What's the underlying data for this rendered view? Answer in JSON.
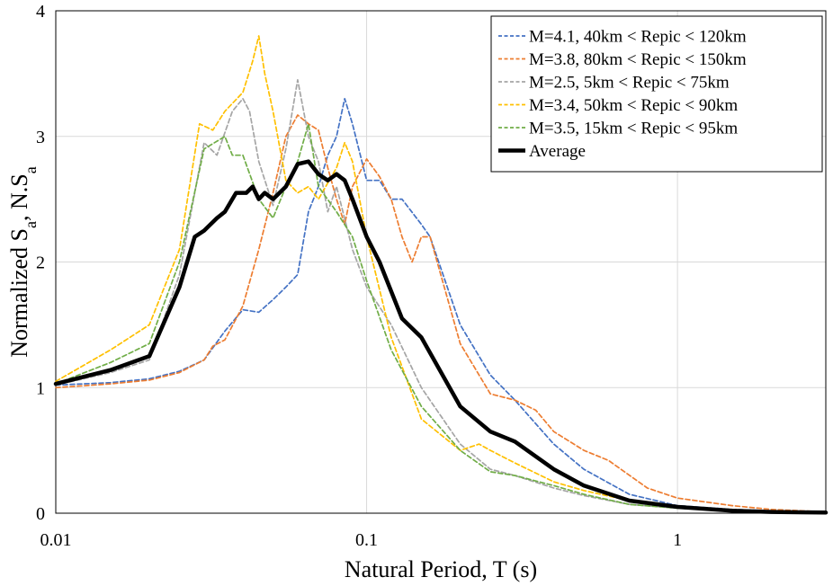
{
  "chart_data": {
    "type": "line",
    "x_scale": "log",
    "xlim": [
      0.01,
      3
    ],
    "ylim": [
      0,
      4
    ],
    "xlabel": "Natural Period, T (s)",
    "ylabel": "Normalized S_a, N.S_a",
    "ylabel_parts": {
      "base": "Normalized S",
      "sub1": "a",
      "mid": ", N.S",
      "sub2": "a"
    },
    "x_ticks": [
      {
        "value": 0.01,
        "label": "0.01"
      },
      {
        "value": 0.1,
        "label": "0.1"
      },
      {
        "value": 1,
        "label": "1"
      }
    ],
    "y_ticks": [
      {
        "value": 0,
        "label": "0"
      },
      {
        "value": 1,
        "label": "1"
      },
      {
        "value": 2,
        "label": "2"
      },
      {
        "value": 3,
        "label": "3"
      },
      {
        "value": 4,
        "label": "4"
      }
    ],
    "grid": true,
    "legend_position": "top-right",
    "series": [
      {
        "name": "M=4.1, 40km < Repic < 120km",
        "color": "#4472C4",
        "style": "dashed",
        "points": [
          [
            0.01,
            1.02
          ],
          [
            0.015,
            1.04
          ],
          [
            0.02,
            1.07
          ],
          [
            0.025,
            1.13
          ],
          [
            0.03,
            1.22
          ],
          [
            0.035,
            1.45
          ],
          [
            0.04,
            1.62
          ],
          [
            0.045,
            1.6
          ],
          [
            0.05,
            1.7
          ],
          [
            0.055,
            1.8
          ],
          [
            0.06,
            1.9
          ],
          [
            0.065,
            2.4
          ],
          [
            0.07,
            2.6
          ],
          [
            0.075,
            2.85
          ],
          [
            0.08,
            3.0
          ],
          [
            0.085,
            3.3
          ],
          [
            0.09,
            3.1
          ],
          [
            0.1,
            2.65
          ],
          [
            0.11,
            2.65
          ],
          [
            0.12,
            2.5
          ],
          [
            0.13,
            2.5
          ],
          [
            0.15,
            2.3
          ],
          [
            0.16,
            2.2
          ],
          [
            0.2,
            1.5
          ],
          [
            0.25,
            1.1
          ],
          [
            0.3,
            0.9
          ],
          [
            0.4,
            0.55
          ],
          [
            0.5,
            0.35
          ],
          [
            0.7,
            0.15
          ],
          [
            1,
            0.06
          ],
          [
            1.5,
            0.03
          ],
          [
            2,
            0.02
          ],
          [
            3,
            0.01
          ]
        ]
      },
      {
        "name": "M=3.8, 80km < Repic < 150km",
        "color": "#ED7D31",
        "style": "dashed",
        "points": [
          [
            0.01,
            1.0
          ],
          [
            0.015,
            1.03
          ],
          [
            0.02,
            1.06
          ],
          [
            0.025,
            1.12
          ],
          [
            0.03,
            1.22
          ],
          [
            0.032,
            1.33
          ],
          [
            0.035,
            1.38
          ],
          [
            0.04,
            1.65
          ],
          [
            0.045,
            2.1
          ],
          [
            0.05,
            2.55
          ],
          [
            0.055,
            3.0
          ],
          [
            0.06,
            3.17
          ],
          [
            0.065,
            3.1
          ],
          [
            0.07,
            3.05
          ],
          [
            0.075,
            2.75
          ],
          [
            0.08,
            2.5
          ],
          [
            0.085,
            2.3
          ],
          [
            0.09,
            2.6
          ],
          [
            0.1,
            2.82
          ],
          [
            0.11,
            2.68
          ],
          [
            0.12,
            2.5
          ],
          [
            0.13,
            2.2
          ],
          [
            0.14,
            2.0
          ],
          [
            0.15,
            2.2
          ],
          [
            0.16,
            2.2
          ],
          [
            0.2,
            1.35
          ],
          [
            0.25,
            0.95
          ],
          [
            0.3,
            0.9
          ],
          [
            0.35,
            0.82
          ],
          [
            0.4,
            0.65
          ],
          [
            0.5,
            0.5
          ],
          [
            0.6,
            0.42
          ],
          [
            0.8,
            0.2
          ],
          [
            1,
            0.12
          ],
          [
            1.5,
            0.06
          ],
          [
            2,
            0.03
          ],
          [
            3,
            0.01
          ]
        ]
      },
      {
        "name": "M=2.5, 5km < Repic < 75km",
        "color": "#A5A5A5",
        "style": "dashed",
        "points": [
          [
            0.01,
            1.02
          ],
          [
            0.015,
            1.12
          ],
          [
            0.02,
            1.22
          ],
          [
            0.025,
            1.9
          ],
          [
            0.03,
            2.95
          ],
          [
            0.033,
            2.85
          ],
          [
            0.037,
            3.2
          ],
          [
            0.04,
            3.3
          ],
          [
            0.042,
            3.2
          ],
          [
            0.045,
            2.8
          ],
          [
            0.05,
            2.45
          ],
          [
            0.055,
            2.9
          ],
          [
            0.06,
            3.45
          ],
          [
            0.065,
            3.0
          ],
          [
            0.07,
            2.8
          ],
          [
            0.075,
            2.4
          ],
          [
            0.08,
            2.6
          ],
          [
            0.09,
            2.1
          ],
          [
            0.1,
            1.8
          ],
          [
            0.12,
            1.5
          ],
          [
            0.15,
            1.0
          ],
          [
            0.2,
            0.55
          ],
          [
            0.25,
            0.35
          ],
          [
            0.3,
            0.3
          ],
          [
            0.4,
            0.2
          ],
          [
            0.5,
            0.14
          ],
          [
            0.7,
            0.07
          ],
          [
            1,
            0.04
          ],
          [
            2,
            0.01
          ],
          [
            3,
            0.005
          ]
        ]
      },
      {
        "name": "M=3.4, 50km < Repic < 90km",
        "color": "#FFC000",
        "style": "dashed",
        "points": [
          [
            0.01,
            1.05
          ],
          [
            0.015,
            1.3
          ],
          [
            0.02,
            1.5
          ],
          [
            0.025,
            2.1
          ],
          [
            0.029,
            3.1
          ],
          [
            0.032,
            3.05
          ],
          [
            0.035,
            3.2
          ],
          [
            0.04,
            3.35
          ],
          [
            0.043,
            3.6
          ],
          [
            0.045,
            3.8
          ],
          [
            0.047,
            3.5
          ],
          [
            0.05,
            3.2
          ],
          [
            0.055,
            2.65
          ],
          [
            0.06,
            2.55
          ],
          [
            0.065,
            2.6
          ],
          [
            0.07,
            2.5
          ],
          [
            0.08,
            2.75
          ],
          [
            0.085,
            2.95
          ],
          [
            0.09,
            2.8
          ],
          [
            0.1,
            2.2
          ],
          [
            0.12,
            1.4
          ],
          [
            0.15,
            0.75
          ],
          [
            0.2,
            0.5
          ],
          [
            0.23,
            0.55
          ],
          [
            0.25,
            0.5
          ],
          [
            0.3,
            0.4
          ],
          [
            0.4,
            0.25
          ],
          [
            0.5,
            0.18
          ],
          [
            0.7,
            0.1
          ],
          [
            1,
            0.05
          ],
          [
            2,
            0.015
          ],
          [
            3,
            0.005
          ]
        ]
      },
      {
        "name": "M=3.5, 15km < Repic < 95km",
        "color": "#70AD47",
        "style": "dashed",
        "points": [
          [
            0.01,
            1.03
          ],
          [
            0.015,
            1.2
          ],
          [
            0.02,
            1.35
          ],
          [
            0.025,
            2.0
          ],
          [
            0.03,
            2.9
          ],
          [
            0.035,
            3.0
          ],
          [
            0.037,
            2.85
          ],
          [
            0.04,
            2.85
          ],
          [
            0.045,
            2.5
          ],
          [
            0.05,
            2.35
          ],
          [
            0.055,
            2.6
          ],
          [
            0.06,
            2.8
          ],
          [
            0.065,
            3.1
          ],
          [
            0.07,
            2.6
          ],
          [
            0.08,
            2.4
          ],
          [
            0.09,
            2.2
          ],
          [
            0.1,
            1.85
          ],
          [
            0.12,
            1.3
          ],
          [
            0.15,
            0.85
          ],
          [
            0.2,
            0.5
          ],
          [
            0.25,
            0.33
          ],
          [
            0.3,
            0.3
          ],
          [
            0.4,
            0.22
          ],
          [
            0.5,
            0.15
          ],
          [
            0.7,
            0.07
          ],
          [
            1,
            0.04
          ],
          [
            2,
            0.01
          ],
          [
            3,
            0.005
          ]
        ]
      },
      {
        "name": "Average",
        "color": "#000000",
        "style": "solid",
        "points": [
          [
            0.01,
            1.03
          ],
          [
            0.015,
            1.14
          ],
          [
            0.02,
            1.25
          ],
          [
            0.025,
            1.8
          ],
          [
            0.028,
            2.2
          ],
          [
            0.03,
            2.25
          ],
          [
            0.033,
            2.35
          ],
          [
            0.035,
            2.4
          ],
          [
            0.038,
            2.55
          ],
          [
            0.041,
            2.55
          ],
          [
            0.043,
            2.6
          ],
          [
            0.045,
            2.5
          ],
          [
            0.047,
            2.55
          ],
          [
            0.05,
            2.5
          ],
          [
            0.055,
            2.6
          ],
          [
            0.06,
            2.78
          ],
          [
            0.065,
            2.8
          ],
          [
            0.07,
            2.7
          ],
          [
            0.075,
            2.65
          ],
          [
            0.08,
            2.7
          ],
          [
            0.085,
            2.65
          ],
          [
            0.09,
            2.5
          ],
          [
            0.1,
            2.2
          ],
          [
            0.11,
            2.0
          ],
          [
            0.13,
            1.55
          ],
          [
            0.15,
            1.4
          ],
          [
            0.2,
            0.85
          ],
          [
            0.25,
            0.65
          ],
          [
            0.3,
            0.57
          ],
          [
            0.4,
            0.35
          ],
          [
            0.5,
            0.22
          ],
          [
            0.7,
            0.1
          ],
          [
            1,
            0.05
          ],
          [
            1.5,
            0.02
          ],
          [
            2,
            0.01
          ],
          [
            3,
            0.005
          ]
        ]
      }
    ]
  }
}
